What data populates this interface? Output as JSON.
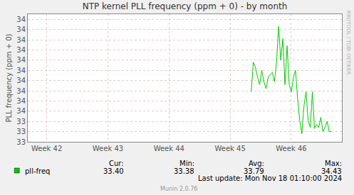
{
  "chart_data": {
    "type": "line",
    "title": "NTP kernel PLL frequency (ppm + 0) - by month",
    "y_label": "PLL frequency (ppm + 0)",
    "categories": [
      null,
      null,
      null,
      null,
      null,
      null,
      null,
      null,
      null,
      "Week 42",
      null,
      null,
      null,
      null,
      null,
      null,
      null,
      null,
      null,
      null,
      null,
      null,
      null,
      null,
      null,
      null,
      null,
      null,
      null,
      null,
      null,
      null,
      null,
      null,
      null,
      null,
      null,
      null,
      "Week 43",
      null,
      null,
      null,
      null,
      null,
      null,
      null,
      null,
      null,
      null,
      null,
      null,
      null,
      null,
      null,
      null,
      null,
      null,
      null,
      null,
      null,
      null,
      null,
      null,
      null,
      null,
      null,
      null,
      "Week 44",
      null,
      null,
      null,
      null,
      null,
      null,
      null,
      null,
      null,
      null,
      null,
      null,
      null,
      null,
      null,
      null,
      null,
      null,
      null,
      null,
      null,
      null,
      null,
      null,
      null,
      null,
      null,
      null,
      "Week 45",
      null,
      null,
      null,
      null,
      null,
      null,
      null,
      null,
      null,
      null,
      null,
      null,
      null,
      null,
      null,
      null,
      null,
      null,
      null,
      null,
      null,
      null,
      null,
      null,
      null,
      null,
      null,
      null,
      "Week 46",
      null,
      null,
      null,
      null,
      null,
      null,
      null,
      null,
      null,
      null,
      null,
      null,
      null,
      null,
      null,
      null,
      null,
      null,
      null,
      null,
      null,
      null,
      null,
      null
    ],
    "series": [
      {
        "name": "pll-freq",
        "color": "#00cc00",
        "values": [
          null,
          null,
          null,
          null,
          null,
          null,
          null,
          null,
          null,
          null,
          null,
          null,
          null,
          null,
          null,
          null,
          null,
          null,
          null,
          null,
          null,
          null,
          null,
          null,
          null,
          null,
          null,
          null,
          null,
          null,
          null,
          null,
          null,
          null,
          null,
          null,
          null,
          null,
          null,
          null,
          null,
          null,
          null,
          null,
          null,
          null,
          null,
          null,
          null,
          null,
          null,
          null,
          null,
          null,
          null,
          null,
          null,
          null,
          null,
          null,
          null,
          null,
          null,
          null,
          null,
          null,
          null,
          null,
          null,
          null,
          null,
          null,
          null,
          null,
          null,
          null,
          null,
          null,
          null,
          null,
          null,
          null,
          null,
          null,
          null,
          null,
          null,
          null,
          null,
          null,
          null,
          null,
          null,
          null,
          null,
          null,
          null,
          null,
          null,
          null,
          null,
          null,
          null,
          null,
          null,
          null,
          33.79,
          34.08,
          34.03,
          33.93,
          33.86,
          34.0,
          33.89,
          33.82,
          33.93,
          33.96,
          33.98,
          33.89,
          34.08,
          34.43,
          34.1,
          34.31,
          33.86,
          34.24,
          33.86,
          33.79,
          33.93,
          34.0,
          33.72,
          33.51,
          33.38,
          33.65,
          33.79,
          33.51,
          33.44,
          33.79,
          33.43,
          33.47,
          33.44,
          33.54,
          33.4,
          33.44,
          33.5,
          33.4,
          33.4,
          null,
          null,
          null,
          null,
          null
        ]
      }
    ],
    "ylim": [
      33.3,
      34.55
    ],
    "yticks": [
      {
        "value": 33.3,
        "label": "33"
      },
      {
        "value": 33.4,
        "label": "33"
      },
      {
        "value": 33.5,
        "label": "33"
      },
      {
        "value": 33.6,
        "label": "34"
      },
      {
        "value": 33.7,
        "label": "34"
      },
      {
        "value": 33.8,
        "label": "34"
      },
      {
        "value": 33.9,
        "label": "34"
      },
      {
        "value": 34.0,
        "label": "34"
      },
      {
        "value": 34.1,
        "label": "34"
      },
      {
        "value": 34.2,
        "label": "34"
      },
      {
        "value": 34.3,
        "label": "34"
      },
      {
        "value": 34.4,
        "label": "34"
      },
      {
        "value": 34.5,
        "label": "34"
      }
    ],
    "grid": true,
    "legend_stats": {
      "headers": [
        "Cur:",
        "Min:",
        "Avg:",
        "Max:"
      ],
      "values": [
        "33.40",
        "33.38",
        "33.79",
        "34.43"
      ]
    },
    "footer": "Last update: Mon Nov 18 01:10:00 2024",
    "credit": "Munin 2.0.76",
    "side_text": "RRDTOOL / TOBI OETIKER"
  }
}
